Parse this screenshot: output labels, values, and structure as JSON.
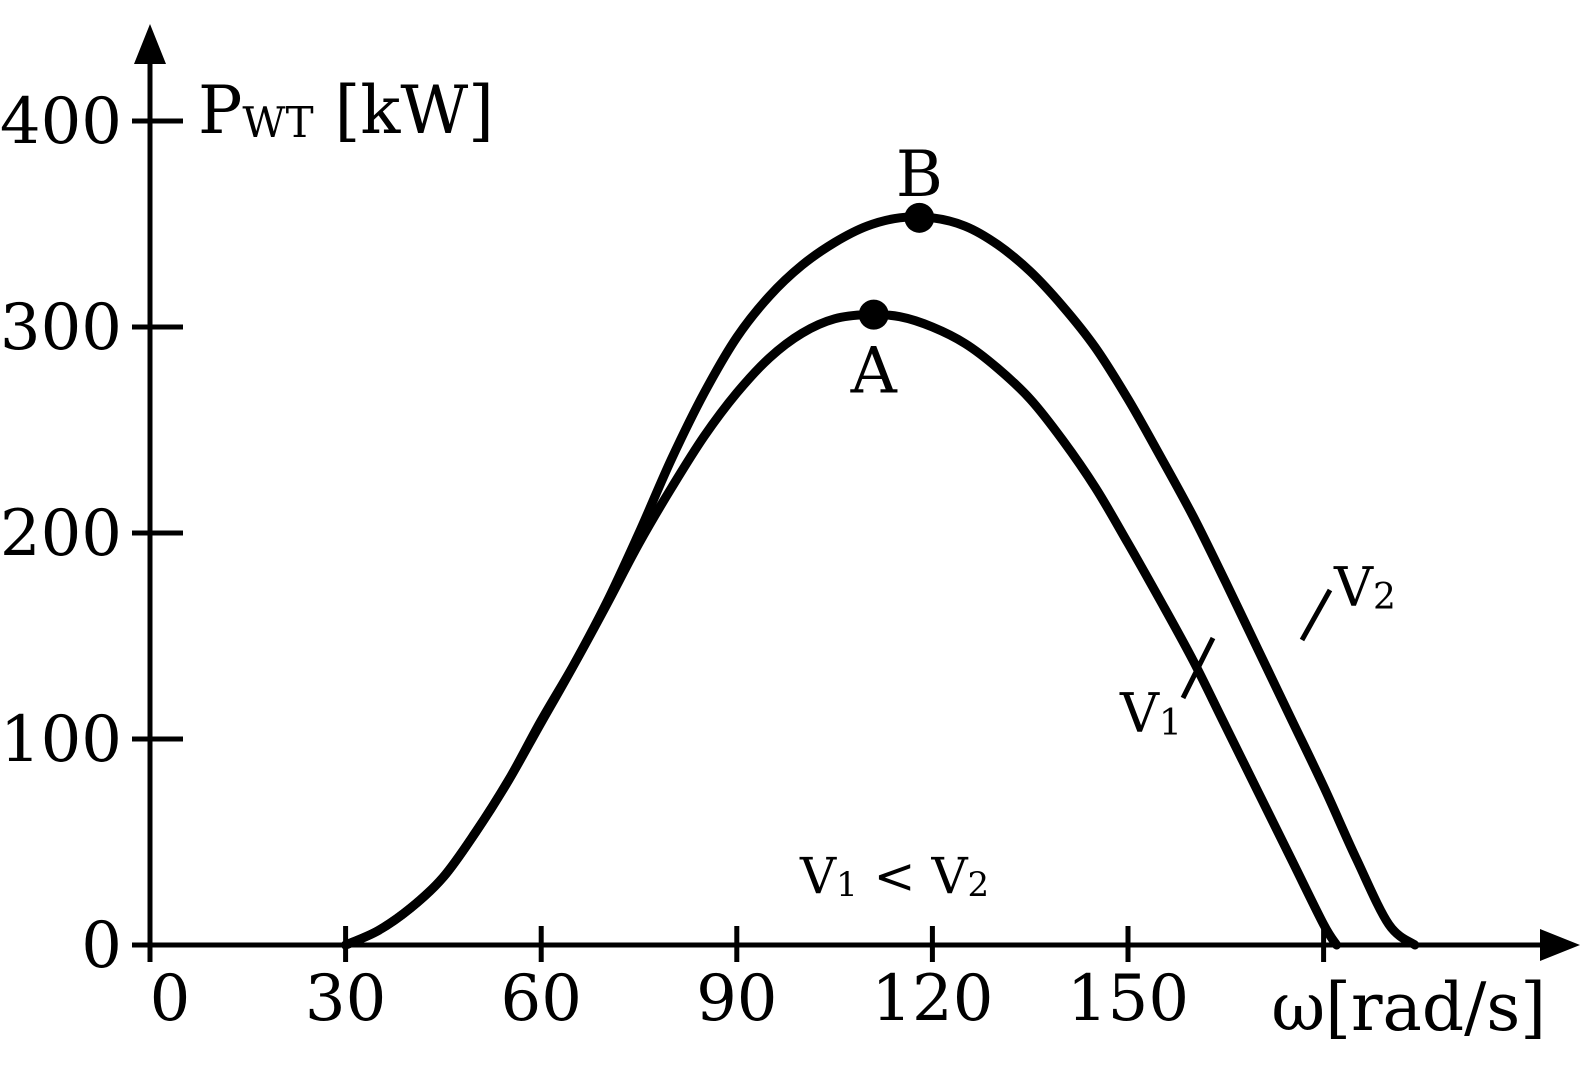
{
  "chart_data": {
    "type": "line",
    "ylabel_main": "P",
    "ylabel_sub": "WT",
    "ylabel_unit": " [kW]",
    "xlabel_main": "ω",
    "xlabel_unit": "[rad/s]",
    "xlim": [
      0,
      210
    ],
    "ylim": [
      0,
      400
    ],
    "x_ticks": [
      0,
      30,
      60,
      90,
      120,
      150,
      180
    ],
    "x_tick_labels": [
      "0",
      "30",
      "60",
      "90",
      "120",
      "150",
      ""
    ],
    "y_ticks": [
      0,
      100,
      200,
      300,
      400
    ],
    "y_tick_labels": [
      "0",
      "100",
      "200",
      "300",
      "400"
    ],
    "grid": false,
    "series": [
      {
        "name": "V1",
        "name_main": "V",
        "name_sub": "1",
        "x": [
          30,
          35,
          40,
          45,
          50,
          55,
          60,
          65,
          70,
          75,
          80,
          85,
          90,
          95,
          100,
          105,
          110,
          115,
          120,
          125,
          130,
          135,
          140,
          145,
          150,
          155,
          160,
          165,
          170,
          175,
          180,
          182
        ],
        "y": [
          0,
          7,
          18,
          33,
          55,
          80,
          109,
          136,
          165,
          195,
          222,
          247,
          268,
          285,
          297,
          304,
          306,
          305,
          300,
          292,
          280,
          265,
          245,
          222,
          195,
          167,
          138,
          106,
          74,
          42,
          10,
          0
        ]
      },
      {
        "name": "V2",
        "name_main": "V",
        "name_sub": "2",
        "x": [
          30,
          35,
          40,
          45,
          50,
          55,
          60,
          65,
          70,
          75,
          80,
          85,
          90,
          95,
          100,
          105,
          110,
          115,
          120,
          125,
          130,
          135,
          140,
          145,
          150,
          155,
          160,
          165,
          170,
          175,
          180,
          185,
          190,
          194
        ],
        "y": [
          0,
          7,
          18,
          33,
          55,
          80,
          108,
          136,
          166,
          200,
          236,
          268,
          295,
          315,
          330,
          341,
          349,
          353,
          353,
          349,
          340,
          327,
          310,
          290,
          265,
          237,
          208,
          176,
          143,
          110,
          77,
          42,
          10,
          0
        ]
      }
    ],
    "points": [
      {
        "label": "A",
        "x": 111,
        "y": 306
      },
      {
        "label": "B",
        "x": 118,
        "y": 353
      }
    ],
    "annotation": {
      "a_main": "V",
      "a_sub": "1",
      "op": " < ",
      "b_main": "V",
      "b_sub": "2"
    }
  }
}
